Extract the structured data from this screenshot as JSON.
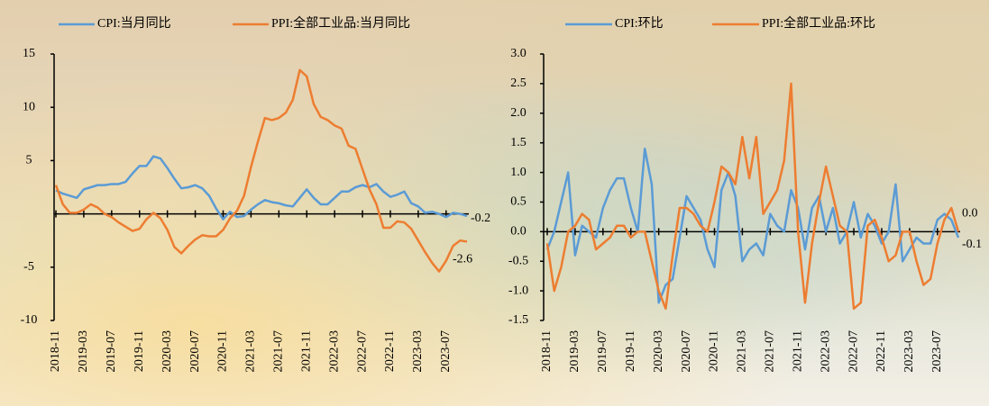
{
  "chart_data": [
    {
      "type": "line",
      "categories": [
        "2018-11",
        null,
        null,
        null,
        "2019-03",
        null,
        null,
        null,
        "2019-07",
        null,
        null,
        null,
        "2019-11",
        null,
        null,
        null,
        "2020-03",
        null,
        null,
        null,
        "2020-07",
        null,
        null,
        null,
        "2020-11",
        null,
        null,
        null,
        "2021-03",
        null,
        null,
        null,
        "2021-07",
        null,
        null,
        null,
        "2021-11",
        null,
        null,
        null,
        "2022-03",
        null,
        null,
        null,
        "2022-07",
        null,
        null,
        null,
        "2022-11",
        null,
        null,
        null,
        "2023-03",
        null,
        null,
        null,
        "2023-07",
        null,
        null,
        null
      ],
      "series": [
        {
          "name": "CPI:当月同比",
          "color": "#5b9bd5",
          "last_label": "-0.2",
          "values": [
            2.2,
            1.9,
            1.7,
            1.5,
            2.3,
            2.5,
            2.7,
            2.7,
            2.8,
            2.8,
            3.0,
            3.8,
            4.5,
            4.5,
            5.4,
            5.2,
            4.3,
            3.3,
            2.4,
            2.5,
            2.7,
            2.4,
            1.7,
            0.5,
            -0.5,
            0.2,
            -0.3,
            -0.2,
            0.4,
            0.9,
            1.3,
            1.1,
            1.0,
            0.8,
            0.7,
            1.5,
            2.3,
            1.5,
            0.9,
            0.9,
            1.5,
            2.1,
            2.1,
            2.5,
            2.7,
            2.5,
            2.8,
            2.1,
            1.6,
            1.8,
            2.1,
            1.0,
            0.7,
            0.1,
            0.2,
            0.0,
            -0.3,
            0.1,
            0.0,
            -0.2
          ]
        },
        {
          "name": "PPI:全部工业品:当月同比",
          "color": "#ed7d31",
          "last_label": "-2.6",
          "values": [
            2.7,
            0.9,
            0.1,
            0.1,
            0.4,
            0.9,
            0.6,
            0.0,
            -0.3,
            -0.8,
            -1.2,
            -1.6,
            -1.4,
            -0.5,
            0.1,
            -0.4,
            -1.5,
            -3.1,
            -3.7,
            -3.0,
            -2.4,
            -2.0,
            -2.1,
            -2.1,
            -1.5,
            -0.4,
            0.3,
            1.7,
            4.4,
            6.8,
            9.0,
            8.8,
            9.0,
            9.5,
            10.7,
            13.5,
            12.9,
            10.3,
            9.1,
            8.8,
            8.3,
            8.0,
            6.4,
            6.1,
            4.2,
            2.3,
            0.9,
            -1.3,
            -1.3,
            -0.7,
            -0.8,
            -1.4,
            -2.5,
            -3.6,
            -4.6,
            -5.4,
            -4.4,
            -3.0,
            -2.5,
            -2.6
          ]
        }
      ],
      "ylim": [
        -10,
        15
      ],
      "yticks": [
        -10,
        -5,
        5,
        10,
        15
      ]
    },
    {
      "type": "line",
      "categories": [
        "2018-11",
        null,
        null,
        null,
        "2019-03",
        null,
        null,
        null,
        "2019-07",
        null,
        null,
        null,
        "2019-11",
        null,
        null,
        null,
        "2020-03",
        null,
        null,
        null,
        "2020-07",
        null,
        null,
        null,
        "2020-11",
        null,
        null,
        null,
        "2021-03",
        null,
        null,
        null,
        "2021-07",
        null,
        null,
        null,
        "2021-11",
        null,
        null,
        null,
        "2022-03",
        null,
        null,
        null,
        "2022-07",
        null,
        null,
        null,
        "2022-11",
        null,
        null,
        null,
        "2023-03",
        null,
        null,
        null,
        "2023-07",
        null,
        null,
        null
      ],
      "series": [
        {
          "name": "CPI:环比",
          "color": "#5b9bd5",
          "last_label": "-0.1",
          "values": [
            -0.3,
            0.0,
            0.5,
            1.0,
            -0.4,
            0.1,
            0.0,
            -0.1,
            0.4,
            0.7,
            0.9,
            0.9,
            0.4,
            0.0,
            1.4,
            0.8,
            -1.2,
            -0.9,
            -0.8,
            -0.1,
            0.6,
            0.4,
            0.2,
            -0.3,
            -0.6,
            0.7,
            1.0,
            0.6,
            -0.5,
            -0.3,
            -0.2,
            -0.4,
            0.3,
            0.1,
            0.0,
            0.7,
            0.4,
            -0.3,
            0.4,
            0.6,
            0.0,
            0.4,
            -0.2,
            0.0,
            0.5,
            -0.1,
            0.3,
            0.1,
            -0.2,
            0.0,
            0.8,
            -0.5,
            -0.3,
            -0.1,
            -0.2,
            -0.2,
            0.2,
            0.3,
            0.2,
            -0.1
          ]
        },
        {
          "name": "PPI:全部工业品:环比",
          "color": "#ed7d31",
          "last_label": "0.0",
          "values": [
            -0.2,
            -1.0,
            -0.6,
            0.0,
            0.1,
            0.3,
            0.2,
            -0.3,
            -0.2,
            -0.1,
            0.1,
            0.1,
            -0.1,
            0.0,
            0.0,
            -0.5,
            -1.0,
            -1.3,
            -0.4,
            0.4,
            0.4,
            0.3,
            0.1,
            0.0,
            0.5,
            1.1,
            1.0,
            0.8,
            1.6,
            0.9,
            1.6,
            0.3,
            0.5,
            0.7,
            1.2,
            2.5,
            0.0,
            -1.2,
            -0.2,
            0.5,
            1.1,
            0.6,
            0.1,
            0.0,
            -1.3,
            -1.2,
            0.1,
            0.2,
            -0.1,
            -0.5,
            -0.4,
            0.0,
            0.0,
            -0.5,
            -0.9,
            -0.8,
            -0.2,
            0.2,
            0.4,
            0.0
          ]
        }
      ],
      "ylim": [
        -1.5,
        3
      ],
      "yticks": [
        -1.5,
        {
          "value": -1,
          "label": "-1.0"
        },
        -0.5,
        {
          "value": 0,
          "label": "0.0"
        },
        0.5,
        {
          "value": 1,
          "label": "1.0"
        },
        1.5,
        {
          "value": 2,
          "label": "2.0"
        },
        2.5,
        {
          "value": 3,
          "label": "3.0"
        }
      ]
    }
  ]
}
